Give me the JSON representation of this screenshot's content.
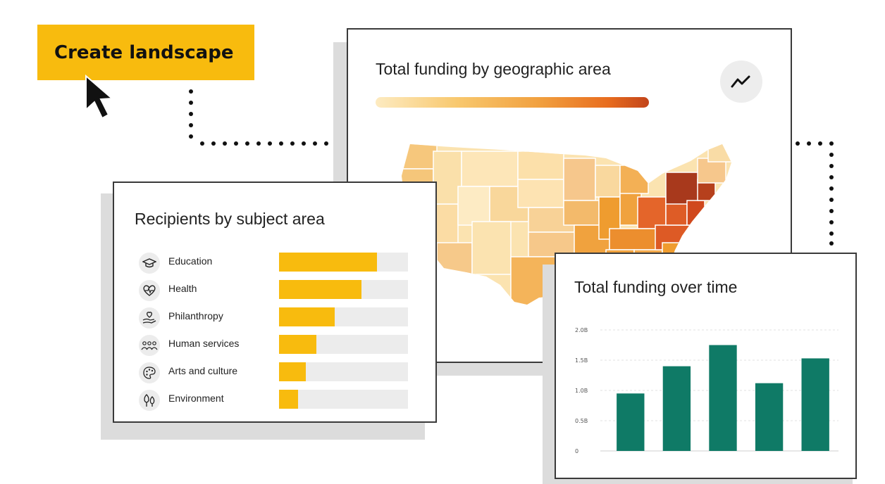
{
  "cta": {
    "label": "Create landscape"
  },
  "map_card": {
    "title": "Total funding by geographic area",
    "trend_icon": "trend-line-icon",
    "gradient_colors": [
      "#fdebc1",
      "#f8c86e",
      "#f1a03f",
      "#e86d1f",
      "#c2441a"
    ]
  },
  "subject_card": {
    "title": "Recipients by subject area",
    "items": [
      {
        "label": "Education",
        "icon": "graduation-cap-icon",
        "value": 0.76
      },
      {
        "label": "Health",
        "icon": "heart-pulse-icon",
        "value": 0.64
      },
      {
        "label": "Philanthropy",
        "icon": "hand-heart-icon",
        "value": 0.43
      },
      {
        "label": "Human services",
        "icon": "people-icon",
        "value": 0.29
      },
      {
        "label": "Arts and culture",
        "icon": "palette-icon",
        "value": 0.21
      },
      {
        "label": "Environment",
        "icon": "trees-icon",
        "value": 0.15
      }
    ],
    "bar_color": "#f8bb0e"
  },
  "time_card": {
    "title": "Total funding over time"
  },
  "chart_data": {
    "type": "bar",
    "title": "Total funding over time",
    "categories": [
      "",
      "",
      "",
      "",
      ""
    ],
    "values": [
      0.95,
      1.4,
      1.75,
      1.12,
      1.53
    ],
    "ylim": [
      0,
      2.0
    ],
    "yticks": [
      {
        "value": 0,
        "label": "0"
      },
      {
        "value": 0.5,
        "label": "0.5B"
      },
      {
        "value": 1.0,
        "label": "1.0B"
      },
      {
        "value": 1.5,
        "label": "1.5B"
      },
      {
        "value": 2.0,
        "label": "2.0B"
      }
    ],
    "grid": true,
    "bar_color": "#0f7a66"
  }
}
